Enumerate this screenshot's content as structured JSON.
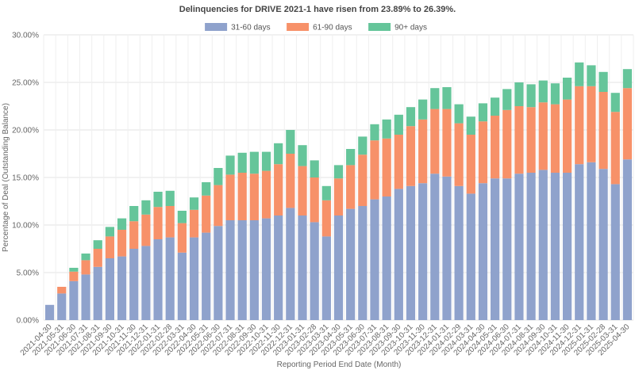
{
  "chart_data": {
    "type": "bar",
    "stacked": true,
    "title": "Delinquencies for DRIVE 2021-1 have risen from 23.89% to 26.39%.",
    "xlabel": "Reporting Period End Date (Month)",
    "ylabel": "Percentage of Deal (Outstanding Balance)",
    "ylim": [
      0,
      30
    ],
    "yticks": [
      "0.00%",
      "5.00%",
      "10.00%",
      "15.00%",
      "20.00%",
      "25.00%",
      "30.00%"
    ],
    "grid": true,
    "legend_position": "top-center",
    "categories": [
      "2021-04-30",
      "2021-05-31",
      "2021-06-30",
      "2021-07-31",
      "2021-08-31",
      "2021-09-30",
      "2021-10-31",
      "2021-11-30",
      "2021-12-31",
      "2022-01-31",
      "2022-02-28",
      "2022-03-31",
      "2022-04-30",
      "2022-05-31",
      "2022-06-30",
      "2022-07-31",
      "2022-08-31",
      "2022-09-30",
      "2022-10-31",
      "2022-11-30",
      "2022-12-31",
      "2023-01-31",
      "2023-02-28",
      "2023-03-31",
      "2023-04-30",
      "2023-05-31",
      "2023-06-30",
      "2023-07-31",
      "2023-08-31",
      "2023-09-30",
      "2023-10-31",
      "2023-11-30",
      "2023-12-31",
      "2024-01-31",
      "2024-02-29",
      "2024-03-31",
      "2024-04-30",
      "2024-05-31",
      "2024-06-30",
      "2024-07-31",
      "2024-08-31",
      "2024-09-30",
      "2024-10-31",
      "2024-11-30",
      "2024-12-31",
      "2025-01-31",
      "2025-02-28",
      "2025-03-31",
      "2025-04-30"
    ],
    "series": [
      {
        "name": "31-60 days",
        "color": "#8fa2cc",
        "values": [
          1.6,
          2.8,
          4.1,
          4.8,
          5.6,
          6.5,
          6.7,
          7.5,
          7.8,
          8.5,
          8.7,
          7.1,
          8.7,
          9.2,
          9.9,
          10.5,
          10.5,
          10.5,
          10.7,
          11.0,
          11.8,
          11.0,
          10.3,
          8.8,
          11.0,
          11.7,
          12.0,
          12.7,
          13.0,
          13.8,
          14.1,
          14.4,
          15.4,
          15.1,
          14.1,
          13.3,
          14.4,
          14.9,
          14.9,
          15.4,
          15.5,
          15.8,
          15.5,
          15.5,
          16.4,
          16.6,
          15.9,
          14.3,
          16.9
        ]
      },
      {
        "name": "61-90 days",
        "color": "#f79169",
        "values": [
          0.0,
          0.7,
          1.0,
          1.5,
          1.9,
          2.3,
          2.8,
          2.9,
          3.3,
          3.4,
          3.3,
          3.1,
          2.9,
          3.9,
          4.3,
          4.8,
          5.0,
          4.9,
          5.0,
          5.4,
          5.7,
          5.2,
          4.7,
          3.8,
          3.9,
          4.6,
          5.4,
          6.2,
          6.1,
          5.7,
          6.3,
          6.7,
          6.8,
          7.1,
          6.6,
          6.2,
          6.5,
          6.6,
          7.2,
          7.1,
          6.9,
          7.1,
          7.2,
          7.7,
          8.2,
          8.0,
          8.1,
          7.6,
          7.5
        ]
      },
      {
        "name": "90+ days",
        "color": "#65c59a",
        "values": [
          0.0,
          0.0,
          0.4,
          0.7,
          0.9,
          1.0,
          1.2,
          1.6,
          1.5,
          1.6,
          1.6,
          1.3,
          1.3,
          1.4,
          1.8,
          2.0,
          2.1,
          2.3,
          2.0,
          2.2,
          2.5,
          2.2,
          1.8,
          1.5,
          1.4,
          1.7,
          1.9,
          1.7,
          2.0,
          2.1,
          2.0,
          2.1,
          2.2,
          2.3,
          2.0,
          1.9,
          1.9,
          1.9,
          2.2,
          2.5,
          2.4,
          2.3,
          2.2,
          2.3,
          2.5,
          2.2,
          2.1,
          2.0,
          2.0
        ]
      }
    ]
  }
}
